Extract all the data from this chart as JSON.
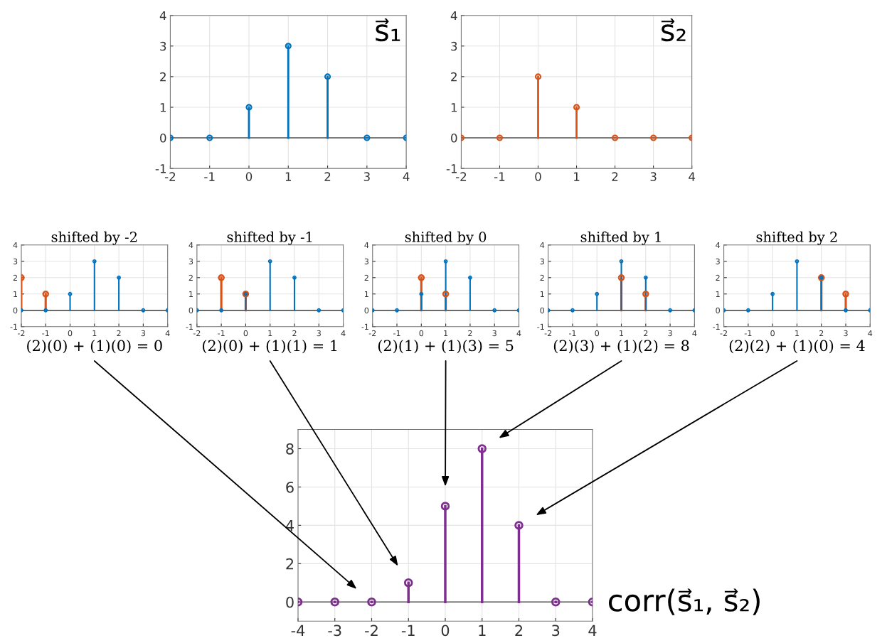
{
  "chart_data": [
    {
      "type": "lollipop",
      "x": [
        -2,
        -1,
        0,
        1,
        2,
        3,
        4
      ],
      "series": [
        {
          "color": "#0072bd",
          "values": [
            0,
            0,
            1,
            3,
            2,
            0,
            0
          ]
        }
      ],
      "xlim": [
        -2,
        4
      ],
      "ylim": [
        -1,
        4
      ],
      "xticks": [
        -2,
        -1,
        0,
        1,
        2,
        3,
        4
      ],
      "yticks": [
        -1,
        0,
        1,
        2,
        3,
        4
      ],
      "grid": true,
      "marker": "circle",
      "annotations": [
        "s⃗₁"
      ]
    },
    {
      "type": "lollipop",
      "x": [
        -2,
        -1,
        0,
        1,
        2,
        3,
        4
      ],
      "series": [
        {
          "color": "#d95319",
          "values": [
            0,
            0,
            2,
            1,
            0,
            0,
            0
          ]
        }
      ],
      "xlim": [
        -2,
        4
      ],
      "ylim": [
        -1,
        4
      ],
      "xticks": [
        -2,
        -1,
        0,
        1,
        2,
        3,
        4
      ],
      "yticks": [
        -1,
        0,
        1,
        2,
        3,
        4
      ],
      "grid": true,
      "marker": "circle",
      "annotations": [
        "s⃗₂"
      ]
    },
    {
      "type": "lollipop",
      "title": "shifted by -2",
      "xlabel": "(2)(0) + (1)(0) = 0",
      "series": [
        {
          "color": "#d95319",
          "x": [
            -2,
            -1
          ],
          "values": [
            2,
            1
          ]
        },
        {
          "color": "#0072bd",
          "x": [
            -2,
            -1,
            0,
            1,
            2,
            3,
            4
          ],
          "values": [
            0,
            0,
            1,
            3,
            2,
            0,
            0
          ]
        }
      ],
      "xlim": [
        -2,
        4
      ],
      "ylim": [
        -1,
        4
      ],
      "xticks": [
        -2,
        -1,
        0,
        1,
        2,
        3,
        4
      ],
      "yticks": [
        -1,
        0,
        1,
        2,
        3,
        4
      ],
      "grid": true,
      "marker": "circle"
    },
    {
      "type": "lollipop",
      "title": "shifted by -1",
      "xlabel": "(2)(0) + (1)(1) = 1",
      "series": [
        {
          "color": "#d95319",
          "x": [
            -1,
            0
          ],
          "values": [
            2,
            1
          ]
        },
        {
          "color": "#0072bd",
          "x": [
            -2,
            -1,
            0,
            1,
            2,
            3,
            4
          ],
          "values": [
            0,
            0,
            1,
            3,
            2,
            0,
            0
          ]
        }
      ],
      "xlim": [
        -2,
        4
      ],
      "ylim": [
        -1,
        4
      ],
      "xticks": [
        -2,
        -1,
        0,
        1,
        2,
        3,
        4
      ],
      "yticks": [
        -1,
        0,
        1,
        2,
        3,
        4
      ],
      "grid": true,
      "marker": "circle"
    },
    {
      "type": "lollipop",
      "title": "shifted by 0",
      "xlabel": "(2)(1) + (1)(3) = 5",
      "series": [
        {
          "color": "#d95319",
          "x": [
            0,
            1
          ],
          "values": [
            2,
            1
          ]
        },
        {
          "color": "#0072bd",
          "x": [
            -2,
            -1,
            0,
            1,
            2,
            3,
            4
          ],
          "values": [
            0,
            0,
            1,
            3,
            2,
            0,
            0
          ]
        }
      ],
      "xlim": [
        -2,
        4
      ],
      "ylim": [
        -1,
        4
      ],
      "xticks": [
        -2,
        -1,
        0,
        1,
        2,
        3,
        4
      ],
      "yticks": [
        -1,
        0,
        1,
        2,
        3,
        4
      ],
      "grid": true,
      "marker": "circle"
    },
    {
      "type": "lollipop",
      "title": "shifted by 1",
      "xlabel": "(2)(3) + (1)(2) = 8",
      "series": [
        {
          "color": "#d95319",
          "x": [
            1,
            2
          ],
          "values": [
            2,
            1
          ]
        },
        {
          "color": "#0072bd",
          "x": [
            -2,
            -1,
            0,
            1,
            2,
            3,
            4
          ],
          "values": [
            0,
            0,
            1,
            3,
            2,
            0,
            0
          ]
        }
      ],
      "xlim": [
        -2,
        4
      ],
      "ylim": [
        -1,
        4
      ],
      "xticks": [
        -2,
        -1,
        0,
        1,
        2,
        3,
        4
      ],
      "yticks": [
        -1,
        0,
        1,
        2,
        3,
        4
      ],
      "grid": true,
      "marker": "circle"
    },
    {
      "type": "lollipop",
      "title": "shifted by 2",
      "xlabel": "(2)(2) + (1)(0) = 4",
      "series": [
        {
          "color": "#d95319",
          "x": [
            2,
            3
          ],
          "values": [
            2,
            1
          ]
        },
        {
          "color": "#0072bd",
          "x": [
            -2,
            -1,
            0,
            1,
            2,
            3,
            4
          ],
          "values": [
            0,
            0,
            1,
            3,
            2,
            0,
            0
          ]
        }
      ],
      "xlim": [
        -2,
        4
      ],
      "ylim": [
        -1,
        4
      ],
      "xticks": [
        -2,
        -1,
        0,
        1,
        2,
        3,
        4
      ],
      "yticks": [
        -1,
        0,
        1,
        2,
        3,
        4
      ],
      "grid": true,
      "marker": "circle"
    },
    {
      "type": "lollipop",
      "x": [
        -4,
        -3,
        -2,
        -1,
        0,
        1,
        2,
        3,
        4
      ],
      "series": [
        {
          "color": "#7e2f8e",
          "values": [
            0,
            0,
            0,
            1,
            5,
            8,
            4,
            0,
            0
          ]
        }
      ],
      "xlim": [
        -4,
        4
      ],
      "ylim": [
        -1,
        9
      ],
      "xticks": [
        -4,
        -3,
        -2,
        -1,
        0,
        1,
        2,
        3,
        4
      ],
      "yticks": [
        0,
        2,
        4,
        6,
        8
      ],
      "grid": true,
      "marker": "circle",
      "annotations": [
        "corr(s⃗₁, s⃗₂)"
      ]
    }
  ]
}
